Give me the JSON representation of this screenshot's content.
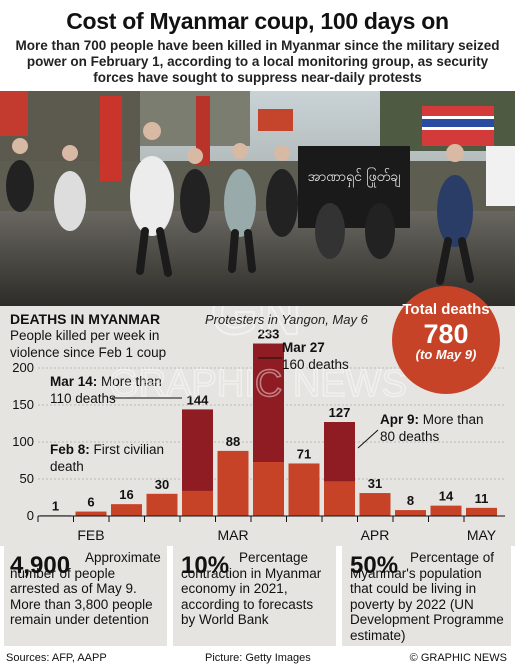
{
  "header": {
    "title": "Cost of Myanmar coup, 100 days on",
    "subtitle": "More than 700 people have been killed in Myanmar since the military seized power on February 1, according to a local monitoring group, as security forces have sought to suppress near-daily protests"
  },
  "photo": {
    "caption": "Protesters in Yangon, May 6",
    "banner_text": "အာဏာရှင် ဖြုတ်ချ"
  },
  "chart_data": {
    "type": "bar",
    "title": "DEATHS IN MYANMAR",
    "subtitle": "People killed per week in violence since Feb 1 coup",
    "values": [
      1,
      6,
      16,
      30,
      144,
      88,
      233,
      71,
      127,
      31,
      8,
      14,
      11
    ],
    "month_labels": [
      {
        "label": "FEB",
        "index": 1
      },
      {
        "label": "MAR",
        "index": 5
      },
      {
        "label": "APR",
        "index": 9
      },
      {
        "label": "MAY",
        "index": 12
      }
    ],
    "highlight_days": [
      {
        "index": 4,
        "value": 110
      },
      {
        "index": 6,
        "value": 160
      },
      {
        "index": 8,
        "value": 80
      }
    ],
    "y_ticks": [
      0,
      50,
      100,
      150,
      200
    ],
    "ylim": [
      0,
      233
    ],
    "annotations": [
      {
        "id": "feb8",
        "date": "Feb 8:",
        "text": "First civilian death"
      },
      {
        "id": "mar14",
        "date": "Mar 14:",
        "text": "More than 110 deaths"
      },
      {
        "id": "mar27",
        "date": "Mar 27",
        "text": "160 deaths"
      },
      {
        "id": "apr9",
        "date": "Apr 9:",
        "text": "More than 80 deaths"
      }
    ],
    "colors": {
      "bar": "#c74327",
      "highlight": "#8e1c22"
    }
  },
  "total": {
    "label": "Total deaths",
    "value": "780",
    "sub": "(to May 9)"
  },
  "stats": [
    {
      "number": "4,900",
      "text": "Approximate number of people arrested as of May 9. More than 3,800 people remain under detention"
    },
    {
      "number": "10%",
      "text": "Percentage contraction in Myanmar economy in 2021, according to forecasts by World Bank"
    },
    {
      "number": "50%",
      "text": "Percentage of Myanmar's population that could be living in poverty by 2022 (UN Development Programme estimate)"
    }
  ],
  "footer": {
    "sources": "Sources: AFP, AAPP",
    "picture": "Picture: Getty Images",
    "credit": "© GRAPHIC NEWS"
  },
  "watermark": {
    "text": "GRAPHIC NEWS",
    "logo": "GN"
  }
}
